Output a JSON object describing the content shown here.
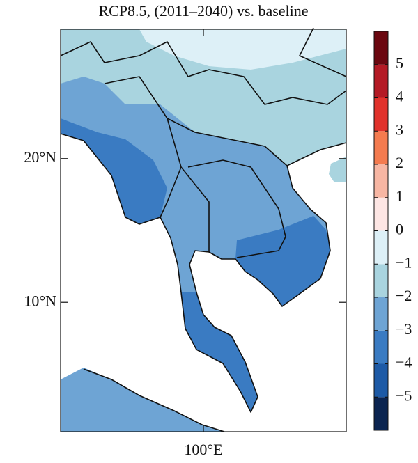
{
  "title": "RCP8.5, (2011–2040) vs. baseline",
  "map": {
    "xlim": [
      90,
      110
    ],
    "ylim": [
      1,
      29
    ],
    "xticks": [
      {
        "value": 100,
        "label": "100°E"
      }
    ],
    "yticks": [
      {
        "value": 10,
        "label": "10°N"
      },
      {
        "value": 20,
        "label": "20°N"
      }
    ]
  },
  "colorbar": {
    "clim": [
      -6,
      6
    ],
    "colors": [
      "#0b2450",
      "#1d5aa6",
      "#3a7bc2",
      "#6ea4d4",
      "#a9d4df",
      "#ddf0f7",
      "#fde6e4",
      "#f7b6a3",
      "#f47b4f",
      "#e1322c",
      "#b41a25",
      "#6b0710"
    ],
    "ticks": [
      {
        "value": -5,
        "label": "−5"
      },
      {
        "value": -4,
        "label": "−4"
      },
      {
        "value": -3,
        "label": "−3"
      },
      {
        "value": -2,
        "label": "−2"
      },
      {
        "value": -1,
        "label": "−1"
      },
      0,
      1,
      2,
      3,
      4,
      5
    ]
  }
}
